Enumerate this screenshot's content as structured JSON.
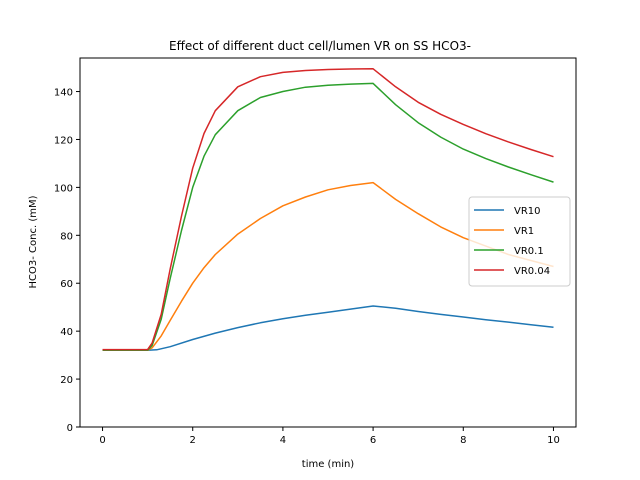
{
  "chart_data": {
    "type": "line",
    "title": "Effect of different duct cell/lumen VR on SS HCO3-",
    "xlabel": "time (min)",
    "ylabel": "HCO3- Conc. (mM)",
    "xlim": [
      -0.5,
      10.5
    ],
    "ylim": [
      0,
      154
    ],
    "xticks": [
      0,
      2,
      4,
      6,
      8,
      10
    ],
    "yticks": [
      0,
      20,
      40,
      60,
      80,
      100,
      120,
      140
    ],
    "grid": false,
    "legend_position": "center-right",
    "series": [
      {
        "name": "VR10",
        "color": "#1f77b4",
        "points": [
          [
            0,
            32
          ],
          [
            1,
            32
          ],
          [
            1.2,
            32.2
          ],
          [
            1.5,
            33.5
          ],
          [
            2,
            36.5
          ],
          [
            2.5,
            39.2
          ],
          [
            3,
            41.5
          ],
          [
            3.5,
            43.5
          ],
          [
            4,
            45.2
          ],
          [
            4.5,
            46.6
          ],
          [
            5,
            47.9
          ],
          [
            5.5,
            49.2
          ],
          [
            6,
            50.5
          ],
          [
            6.5,
            49.6
          ],
          [
            7,
            48.2
          ],
          [
            7.5,
            47
          ],
          [
            8,
            45.9
          ],
          [
            8.5,
            44.8
          ],
          [
            9,
            43.8
          ],
          [
            9.5,
            42.7
          ],
          [
            10,
            41.6
          ]
        ]
      },
      {
        "name": "VR1",
        "color": "#ff7f0e",
        "points": [
          [
            0,
            32
          ],
          [
            1,
            32
          ],
          [
            1.1,
            33
          ],
          [
            1.3,
            38
          ],
          [
            1.5,
            44.5
          ],
          [
            1.75,
            52.5
          ],
          [
            2,
            60
          ],
          [
            2.25,
            66.5
          ],
          [
            2.5,
            72
          ],
          [
            3,
            80.5
          ],
          [
            3.5,
            87
          ],
          [
            4,
            92.3
          ],
          [
            4.5,
            96
          ],
          [
            5,
            99
          ],
          [
            5.5,
            100.8
          ],
          [
            6,
            102
          ],
          [
            6.5,
            95
          ],
          [
            7,
            89
          ],
          [
            7.5,
            83.5
          ],
          [
            8,
            79
          ],
          [
            8.5,
            75.5
          ],
          [
            9,
            72
          ],
          [
            9.5,
            69.5
          ],
          [
            10,
            67
          ]
        ]
      },
      {
        "name": "VR0.1",
        "color": "#2ca02c",
        "points": [
          [
            0,
            32
          ],
          [
            1,
            32
          ],
          [
            1.1,
            34
          ],
          [
            1.3,
            45
          ],
          [
            1.5,
            62
          ],
          [
            1.75,
            82
          ],
          [
            2,
            100
          ],
          [
            2.25,
            113
          ],
          [
            2.5,
            122
          ],
          [
            3,
            132
          ],
          [
            3.5,
            137.5
          ],
          [
            4,
            140
          ],
          [
            4.5,
            141.8
          ],
          [
            5,
            142.6
          ],
          [
            5.5,
            143.1
          ],
          [
            6,
            143.4
          ],
          [
            6.5,
            134.5
          ],
          [
            7,
            127
          ],
          [
            7.5,
            121
          ],
          [
            8,
            116
          ],
          [
            8.5,
            112
          ],
          [
            9,
            108.5
          ],
          [
            9.5,
            105.3
          ],
          [
            10,
            102.2
          ]
        ]
      },
      {
        "name": "VR0.04",
        "color": "#d62728",
        "points": [
          [
            0,
            32.3
          ],
          [
            1,
            32.3
          ],
          [
            1.1,
            35
          ],
          [
            1.3,
            47
          ],
          [
            1.5,
            66
          ],
          [
            1.75,
            88
          ],
          [
            2,
            108
          ],
          [
            2.25,
            122.5
          ],
          [
            2.5,
            132
          ],
          [
            3,
            142
          ],
          [
            3.5,
            146.2
          ],
          [
            4,
            148
          ],
          [
            4.5,
            148.8
          ],
          [
            5,
            149.2
          ],
          [
            5.5,
            149.4
          ],
          [
            6,
            149.5
          ],
          [
            6.5,
            142
          ],
          [
            7,
            135.5
          ],
          [
            7.5,
            130.5
          ],
          [
            8,
            126.3
          ],
          [
            8.5,
            122.4
          ],
          [
            9,
            119
          ],
          [
            9.5,
            115.8
          ],
          [
            10,
            112.8
          ]
        ]
      }
    ]
  }
}
